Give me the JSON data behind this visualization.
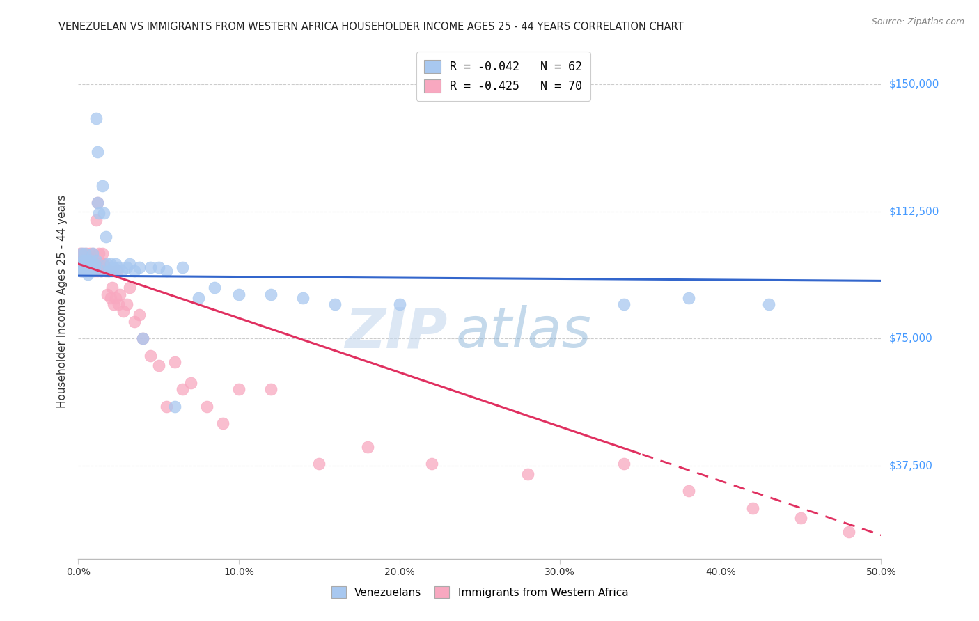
{
  "title": "VENEZUELAN VS IMMIGRANTS FROM WESTERN AFRICA HOUSEHOLDER INCOME AGES 25 - 44 YEARS CORRELATION CHART",
  "source": "Source: ZipAtlas.com",
  "ylabel": "Householder Income Ages 25 - 44 years",
  "yticks": [
    37500,
    75000,
    112500,
    150000
  ],
  "ytick_labels": [
    "$37,500",
    "$75,000",
    "$112,500",
    "$150,000"
  ],
  "legend_venezuelan": "R = -0.042   N = 62",
  "legend_western_africa": "R = -0.425   N = 70",
  "legend_label1": "Venezuelans",
  "legend_label2": "Immigrants from Western Africa",
  "watermark_zip": "ZIP",
  "watermark_atlas": "atlas",
  "blue_color": "#a8c8f0",
  "pink_color": "#f8a8c0",
  "blue_line_color": "#3366cc",
  "pink_line_color": "#e03060",
  "venezuelan_x": [
    0.001,
    0.001,
    0.002,
    0.002,
    0.002,
    0.003,
    0.003,
    0.003,
    0.004,
    0.004,
    0.004,
    0.005,
    0.005,
    0.005,
    0.006,
    0.006,
    0.006,
    0.007,
    0.007,
    0.008,
    0.008,
    0.009,
    0.009,
    0.01,
    0.01,
    0.011,
    0.011,
    0.012,
    0.012,
    0.013,
    0.014,
    0.015,
    0.016,
    0.017,
    0.018,
    0.019,
    0.02,
    0.021,
    0.022,
    0.023,
    0.025,
    0.027,
    0.03,
    0.032,
    0.035,
    0.038,
    0.04,
    0.045,
    0.05,
    0.055,
    0.06,
    0.065,
    0.075,
    0.085,
    0.1,
    0.12,
    0.14,
    0.16,
    0.2,
    0.34,
    0.38,
    0.43
  ],
  "venezuelan_y": [
    96000,
    95000,
    97000,
    100000,
    95000,
    98000,
    96000,
    95000,
    100000,
    97000,
    95000,
    97000,
    95000,
    98000,
    97000,
    96000,
    94000,
    98000,
    95000,
    96000,
    97000,
    95000,
    100000,
    97000,
    96000,
    140000,
    98000,
    115000,
    130000,
    112000,
    95000,
    120000,
    112000,
    105000,
    97000,
    95000,
    97000,
    95000,
    96000,
    97000,
    96000,
    95000,
    96000,
    97000,
    95000,
    96000,
    75000,
    96000,
    96000,
    95000,
    55000,
    96000,
    87000,
    90000,
    88000,
    88000,
    87000,
    85000,
    85000,
    85000,
    87000,
    85000
  ],
  "western_africa_x": [
    0.001,
    0.001,
    0.002,
    0.002,
    0.003,
    0.003,
    0.003,
    0.004,
    0.004,
    0.005,
    0.005,
    0.005,
    0.006,
    0.006,
    0.006,
    0.007,
    0.007,
    0.007,
    0.008,
    0.008,
    0.008,
    0.009,
    0.009,
    0.01,
    0.01,
    0.011,
    0.011,
    0.012,
    0.012,
    0.013,
    0.013,
    0.014,
    0.015,
    0.015,
    0.016,
    0.017,
    0.018,
    0.019,
    0.02,
    0.021,
    0.022,
    0.023,
    0.024,
    0.025,
    0.026,
    0.028,
    0.03,
    0.032,
    0.035,
    0.038,
    0.04,
    0.045,
    0.05,
    0.055,
    0.06,
    0.065,
    0.07,
    0.08,
    0.09,
    0.1,
    0.12,
    0.15,
    0.18,
    0.22,
    0.28,
    0.34,
    0.38,
    0.42,
    0.45,
    0.48
  ],
  "western_africa_y": [
    100000,
    96000,
    97000,
    95000,
    100000,
    97000,
    96000,
    95000,
    98000,
    100000,
    97000,
    95000,
    99000,
    97000,
    96000,
    100000,
    95000,
    98000,
    96000,
    98000,
    95000,
    100000,
    97000,
    97000,
    95000,
    110000,
    97000,
    115000,
    95000,
    97000,
    100000,
    95000,
    97000,
    100000,
    97000,
    95000,
    88000,
    95000,
    87000,
    90000,
    85000,
    87000,
    95000,
    85000,
    88000,
    83000,
    85000,
    90000,
    80000,
    82000,
    75000,
    70000,
    67000,
    55000,
    68000,
    60000,
    62000,
    55000,
    50000,
    60000,
    60000,
    38000,
    43000,
    38000,
    35000,
    38000,
    30000,
    25000,
    22000,
    18000
  ],
  "xmin": 0.0,
  "xmax": 0.5,
  "ymin": 10000,
  "ymax": 162000,
  "xtick_positions": [
    0.0,
    0.1,
    0.2,
    0.3,
    0.4,
    0.5
  ],
  "xtick_labels": [
    "0.0%",
    "10.0%",
    "20.0%",
    "30.0%",
    "40.0%",
    "50.0%"
  ]
}
